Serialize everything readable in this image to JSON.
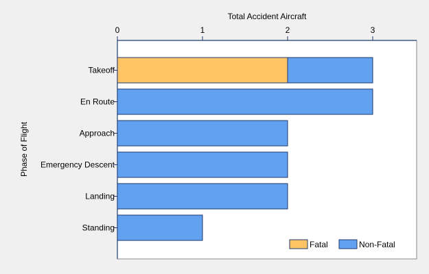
{
  "chart_data": {
    "type": "bar",
    "orientation": "horizontal",
    "stacked": true,
    "title": "",
    "xlabel": "Total Accident Aircraft",
    "ylabel": "Phase of Flight",
    "xlim": [
      0,
      3.5
    ],
    "x_ticks": [
      "0",
      "1",
      "2",
      "3"
    ],
    "categories": [
      "Takeoff",
      "En Route",
      "Approach",
      "Emergency Descent",
      "Landing",
      "Standing"
    ],
    "series": [
      {
        "name": "Fatal",
        "color": "#ffc466",
        "values": [
          2,
          0,
          0,
          0,
          0,
          0
        ]
      },
      {
        "name": "Non-Fatal",
        "color": "#62a0f0",
        "values": [
          1,
          3,
          2,
          2,
          2,
          1
        ]
      }
    ],
    "grid": false,
    "legend_position": "bottom-right",
    "axis_position": "top"
  },
  "colors": {
    "page_background": "#f0f0f0",
    "plot_background": "#ffffff",
    "axis": "#1f3a6e",
    "bar_border": "#1f3a6e"
  }
}
